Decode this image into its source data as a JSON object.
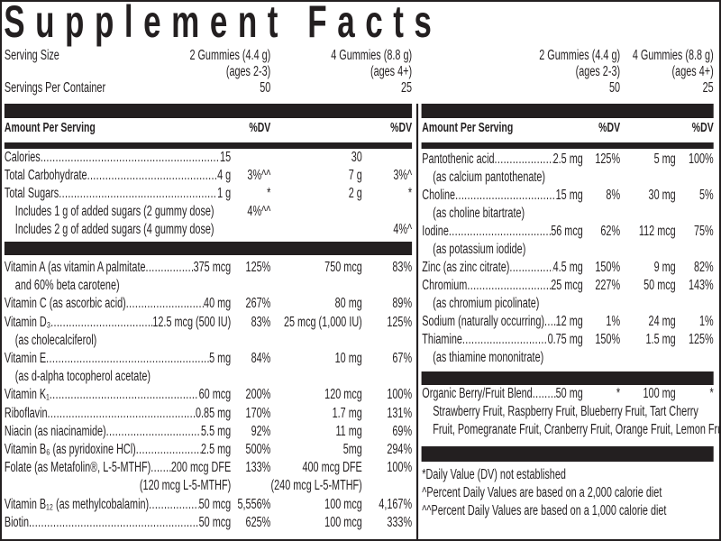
{
  "title": "Supplement Facts",
  "header": {
    "serving_size_label": "Serving Size",
    "servings_label": "Servings Per Container",
    "col1": {
      "size": "2 Gummies (4.4 g)",
      "ages": "(ages 2-3)",
      "servings": "50"
    },
    "col2": {
      "size": "4 Gummies (8.8 g)",
      "ages": "(ages 4+)",
      "servings": "25"
    }
  },
  "amount_label": "Amount Per Serving",
  "dv_label": "%DV",
  "left_a": [
    {
      "label": "Calories",
      "leader": true,
      "amt1": "15",
      "dv1": "",
      "amt2": "30",
      "dv2": ""
    },
    {
      "label": "Total Carbohydrate ",
      "leader": true,
      "amt1": "4 g",
      "dv1": "3%^^",
      "amt2": "7 g",
      "dv2": "3%^"
    },
    {
      "label": "Total Sugars",
      "leader": true,
      "amt1": "1 g",
      "dv1": "*",
      "amt2": "2 g",
      "dv2": "*"
    },
    {
      "label": "Includes 1 g of added sugars (2 gummy dose)",
      "indent": true,
      "dv1": "4%^^"
    },
    {
      "label": "Includes 2 g of added sugars (4 gummy dose)",
      "indent": true,
      "dv2": "4%^"
    }
  ],
  "left_b": [
    {
      "label": "Vitamin A (as vitamin A palmitate",
      "leader": true,
      "amt1": "375 mcg",
      "dv1": "125%",
      "amt2": "750 mcg",
      "dv2": "83%"
    },
    {
      "label": "and 60% beta carotene)",
      "indent": true
    },
    {
      "label": "Vitamin C (as ascorbic acid)",
      "leader": true,
      "amt1": "40 mg",
      "dv1": "267%",
      "amt2": "80 mg",
      "dv2": "89%"
    },
    {
      "label": "Vitamin D₃",
      "leader": true,
      "amt1": " 12.5 mcg (500 IU)",
      "dv1": "83%",
      "amt2": "25 mcg (1,000 IU)",
      "dv2": "125%"
    },
    {
      "label": "(as cholecalciferol)",
      "indent": true
    },
    {
      "label": "Vitamin E",
      "leader": true,
      "amt1": " 5 mg",
      "dv1": "84%",
      "amt2": "10 mg",
      "dv2": "67%"
    },
    {
      "label": "(as d-alpha tocopherol acetate)",
      "indent": true
    },
    {
      "label": "Vitamin K₁",
      "leader": true,
      "amt1": "60 mcg",
      "dv1": "200%",
      "amt2": "120 mcg",
      "dv2": "100%"
    },
    {
      "label": "Riboflavin ",
      "leader": true,
      "amt1": "0.85 mg",
      "dv1": "170%",
      "amt2": "1.7 mg",
      "dv2": "131%"
    },
    {
      "label": "Niacin (as niacinamide) ",
      "leader": true,
      "amt1": "5.5 mg",
      "dv1": "92%",
      "amt2": "11 mg",
      "dv2": "69%"
    },
    {
      "label": "Vitamin B₆ (as pyridoxine HCl) ",
      "leader": true,
      "amt1": "2.5 mg",
      "dv1": "500%",
      "amt2": "5mg",
      "dv2": "294%"
    },
    {
      "label": "Folate (as Metafolin®, L-5-MTHF) ",
      "leader": true,
      "amt1": " 200 mcg DFE",
      "dv1": "133%",
      "amt2": "400 mcg DFE",
      "dv2": "100%"
    },
    {
      "label": "",
      "amt1": "(120 mcg L-5-MTHF)",
      "amt2": "(240 mcg L-5-MTHF)"
    },
    {
      "label": "Vitamin B₁₂ (as methylcobalamin)",
      "leader": true,
      "amt1": "50 mcg",
      "dv1": "5,556%",
      "amt2": "100 mcg",
      "dv2": "4,167%"
    },
    {
      "label": "Biotin",
      "leader": true,
      "amt1": "50 mcg",
      "dv1": "625%",
      "amt2": "100 mcg",
      "dv2": "333%"
    }
  ],
  "right_a": [
    {
      "label": "Pantothenic acid ",
      "leader": true,
      "amt1": "2.5 mg",
      "dv1": "125%",
      "amt2": "5 mg",
      "dv2": "100%"
    },
    {
      "label": "(as calcium pantothenate)",
      "indent": true
    },
    {
      "label": "Choline",
      "leader": true,
      "amt1": "15 mg",
      "dv1": "8%",
      "amt2": "30 mg",
      "dv2": "5%"
    },
    {
      "label": "(as choline bitartrate)",
      "indent": true
    },
    {
      "label": "Iodine ",
      "leader": true,
      "amt1": "56 mcg",
      "dv1": "62%",
      "amt2": "112 mcg",
      "dv2": "75%"
    },
    {
      "label": "(as potassium iodide)",
      "indent": true
    },
    {
      "label": "Zinc (as zinc citrate)",
      "leader": true,
      "amt1": "4.5 mg",
      "dv1": "150%",
      "amt2": "9 mg",
      "dv2": "82%"
    },
    {
      "label": "Chromium ",
      "leader": true,
      "amt1": "25 mcg",
      "dv1": "227%",
      "amt2": "50 mcg",
      "dv2": "143%"
    },
    {
      "label": "(as chromium picolinate)",
      "indent": true
    },
    {
      "label": "Sodium (naturally occurring)",
      "leader": true,
      "amt1": "12 mg",
      "dv1": "1%",
      "amt2": "24 mg",
      "dv2": "1%"
    },
    {
      "label": "Thiamine ",
      "leader": true,
      "amt1": "0.75 mg",
      "dv1": "150%",
      "amt2": "1.5 mg",
      "dv2": "125%"
    },
    {
      "label": "(as thiamine mononitrate)",
      "indent": true
    }
  ],
  "right_b": [
    {
      "label": "Organic Berry/Fruit Blend ",
      "leader": true,
      "amt1": "50 mg",
      "dv1": "*",
      "amt2": "100 mg",
      "dv2": "*"
    },
    {
      "label": "Strawberry Fruit, Raspberry Fruit, Blueberry Fruit, Tart Cherry",
      "indent": true
    },
    {
      "label": "Fruit, Pomegranate Fruit, Cranberry Fruit, Orange Fruit, Lemon Fruit",
      "indent": true
    }
  ],
  "notes": [
    "*Daily Value (DV) not established",
    "^Percent Daily Values are based on a 2,000 calorie diet",
    "^^Percent Daily Values are based on a 1,000 calorie diet"
  ]
}
